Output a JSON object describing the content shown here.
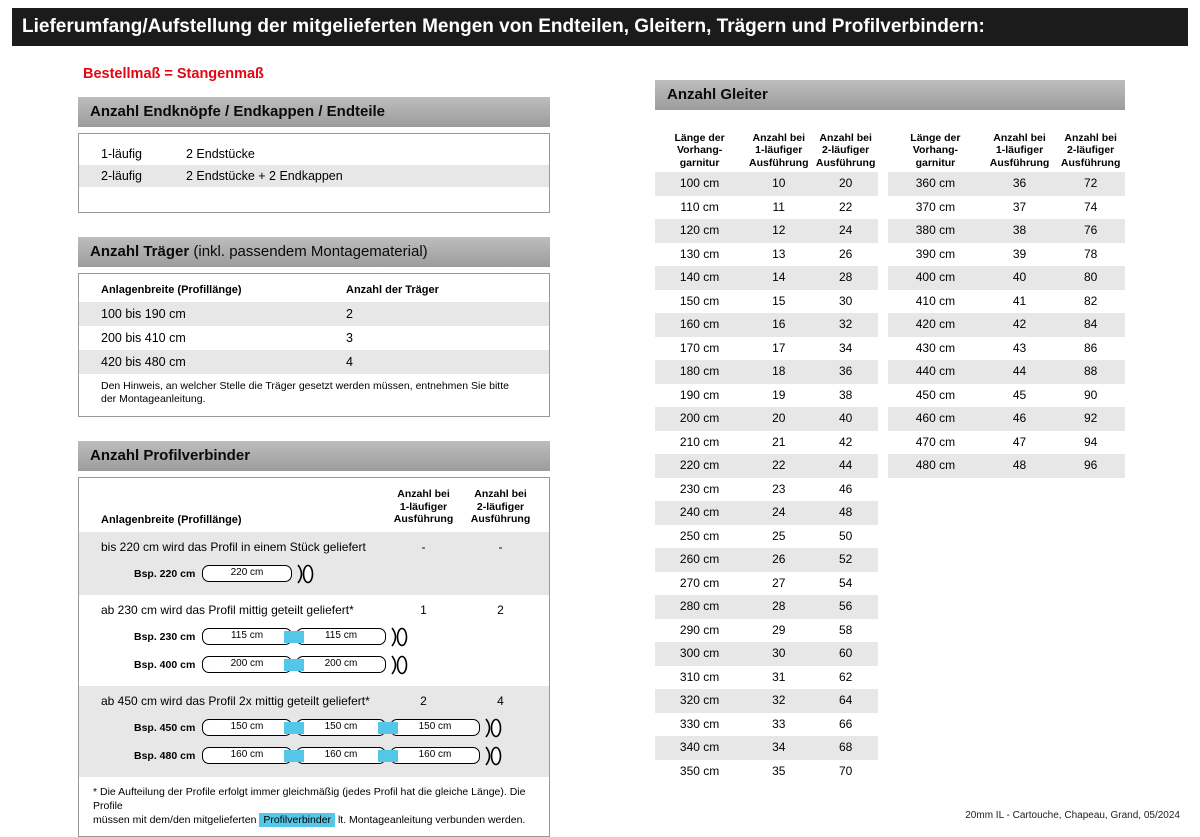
{
  "page": {
    "title": "Lieferumfang/Aufstellung der mitgelieferten Mengen von Endteilen, Gleitern, Trägern und Profilverbindern:",
    "subtitle": "Bestellmaß = Stangenmaß",
    "footer": "20mm IL - Cartouche, Chapeau, Grand, 05/2024"
  },
  "colors": {
    "accent_red": "#e30613",
    "connector_cyan": "#54c6e8",
    "section_bar_gray": "#ababab",
    "row_shade_gray": "#e7e7e7",
    "title_bar_black": "#1b1b1b"
  },
  "endteile": {
    "header": "Anzahl Endknöpfe / Endkappen / Endteile",
    "rows": [
      {
        "label": "1-läufig",
        "value": "2 Endstücke"
      },
      {
        "label": "2-läufig",
        "value": "2 Endstücke + 2 Endkappen"
      }
    ]
  },
  "traeger": {
    "header_bold": "Anzahl Träger",
    "header_rest": " (inkl. passendem Montagematerial)",
    "col1": "Anlagenbreite (Profillänge)",
    "col2": "Anzahl der Träger",
    "rows": [
      {
        "range": "100 bis 190 cm",
        "count": "2"
      },
      {
        "range": "200 bis 410 cm",
        "count": "3"
      },
      {
        "range": "420 bis 480 cm",
        "count": "4"
      }
    ],
    "note": "Den Hinweis, an welcher Stelle die Träger gesetzt werden müssen, entnehmen Sie bitte\nder Montageanleitung."
  },
  "profilverbinder": {
    "header": "Anzahl Profilverbinder",
    "col1": "Anlagenbreite (Profillänge)",
    "col2": "Anzahl bei\n1-läufiger\nAusführung",
    "col3": "Anzahl bei\n2-läufiger\nAusführung",
    "sections": [
      {
        "text": "bis 220 cm wird das Profil in einem Stück geliefert",
        "val1": "-",
        "val2": "-",
        "examples": [
          {
            "label": "Bsp. 220 cm",
            "segments": [
              "220 cm"
            ]
          }
        ]
      },
      {
        "text": "ab 230 cm wird das Profil mittig geteilt geliefert*",
        "val1": "1",
        "val2": "2",
        "examples": [
          {
            "label": "Bsp. 230 cm",
            "segments": [
              "115 cm",
              "115 cm"
            ]
          },
          {
            "label": "Bsp. 400 cm",
            "segments": [
              "200 cm",
              "200 cm"
            ]
          }
        ]
      },
      {
        "text": "ab 450 cm wird das Profil 2x mittig geteilt geliefert*",
        "val1": "2",
        "val2": "4",
        "examples": [
          {
            "label": "Bsp. 450 cm",
            "segments": [
              "150 cm",
              "150 cm",
              "150 cm"
            ]
          },
          {
            "label": "Bsp. 480 cm",
            "segments": [
              "160 cm",
              "160 cm",
              "160 cm"
            ]
          }
        ]
      }
    ],
    "footnote_pre": "* Die Aufteilung der Profile erfolgt immer gleichmäßig (jedes Profil hat die gleiche Länge). Die Profile\nmüssen mit dem/den mitgelieferten ",
    "footnote_highlight": "Profilverbinder",
    "footnote_post": " lt. Montageanleitung verbunden werden."
  },
  "gleiter": {
    "header": "Anzahl Gleiter",
    "col_headers": [
      "Länge der\nVorhang-\ngarnitur",
      "Anzahl bei\n1-läufiger\nAusführung",
      "Anzahl bei\n2-läufiger\nAusführung"
    ],
    "table1": [
      [
        "100 cm",
        "10",
        "20"
      ],
      [
        "110 cm",
        "11",
        "22"
      ],
      [
        "120 cm",
        "12",
        "24"
      ],
      [
        "130 cm",
        "13",
        "26"
      ],
      [
        "140 cm",
        "14",
        "28"
      ],
      [
        "150 cm",
        "15",
        "30"
      ],
      [
        "160 cm",
        "16",
        "32"
      ],
      [
        "170 cm",
        "17",
        "34"
      ],
      [
        "180 cm",
        "18",
        "36"
      ],
      [
        "190 cm",
        "19",
        "38"
      ],
      [
        "200 cm",
        "20",
        "40"
      ],
      [
        "210 cm",
        "21",
        "42"
      ],
      [
        "220 cm",
        "22",
        "44"
      ],
      [
        "230 cm",
        "23",
        "46"
      ],
      [
        "240 cm",
        "24",
        "48"
      ],
      [
        "250 cm",
        "25",
        "50"
      ],
      [
        "260 cm",
        "26",
        "52"
      ],
      [
        "270 cm",
        "27",
        "54"
      ],
      [
        "280 cm",
        "28",
        "56"
      ],
      [
        "290 cm",
        "29",
        "58"
      ],
      [
        "300 cm",
        "30",
        "60"
      ],
      [
        "310 cm",
        "31",
        "62"
      ],
      [
        "320 cm",
        "32",
        "64"
      ],
      [
        "330 cm",
        "33",
        "66"
      ],
      [
        "340 cm",
        "34",
        "68"
      ],
      [
        "350 cm",
        "35",
        "70"
      ]
    ],
    "table2": [
      [
        "360 cm",
        "36",
        "72"
      ],
      [
        "370 cm",
        "37",
        "74"
      ],
      [
        "380 cm",
        "38",
        "76"
      ],
      [
        "390 cm",
        "39",
        "78"
      ],
      [
        "400 cm",
        "40",
        "80"
      ],
      [
        "410 cm",
        "41",
        "82"
      ],
      [
        "420 cm",
        "42",
        "84"
      ],
      [
        "430 cm",
        "43",
        "86"
      ],
      [
        "440 cm",
        "44",
        "88"
      ],
      [
        "450 cm",
        "45",
        "90"
      ],
      [
        "460 cm",
        "46",
        "92"
      ],
      [
        "470 cm",
        "47",
        "94"
      ],
      [
        "480 cm",
        "48",
        "96"
      ]
    ]
  }
}
